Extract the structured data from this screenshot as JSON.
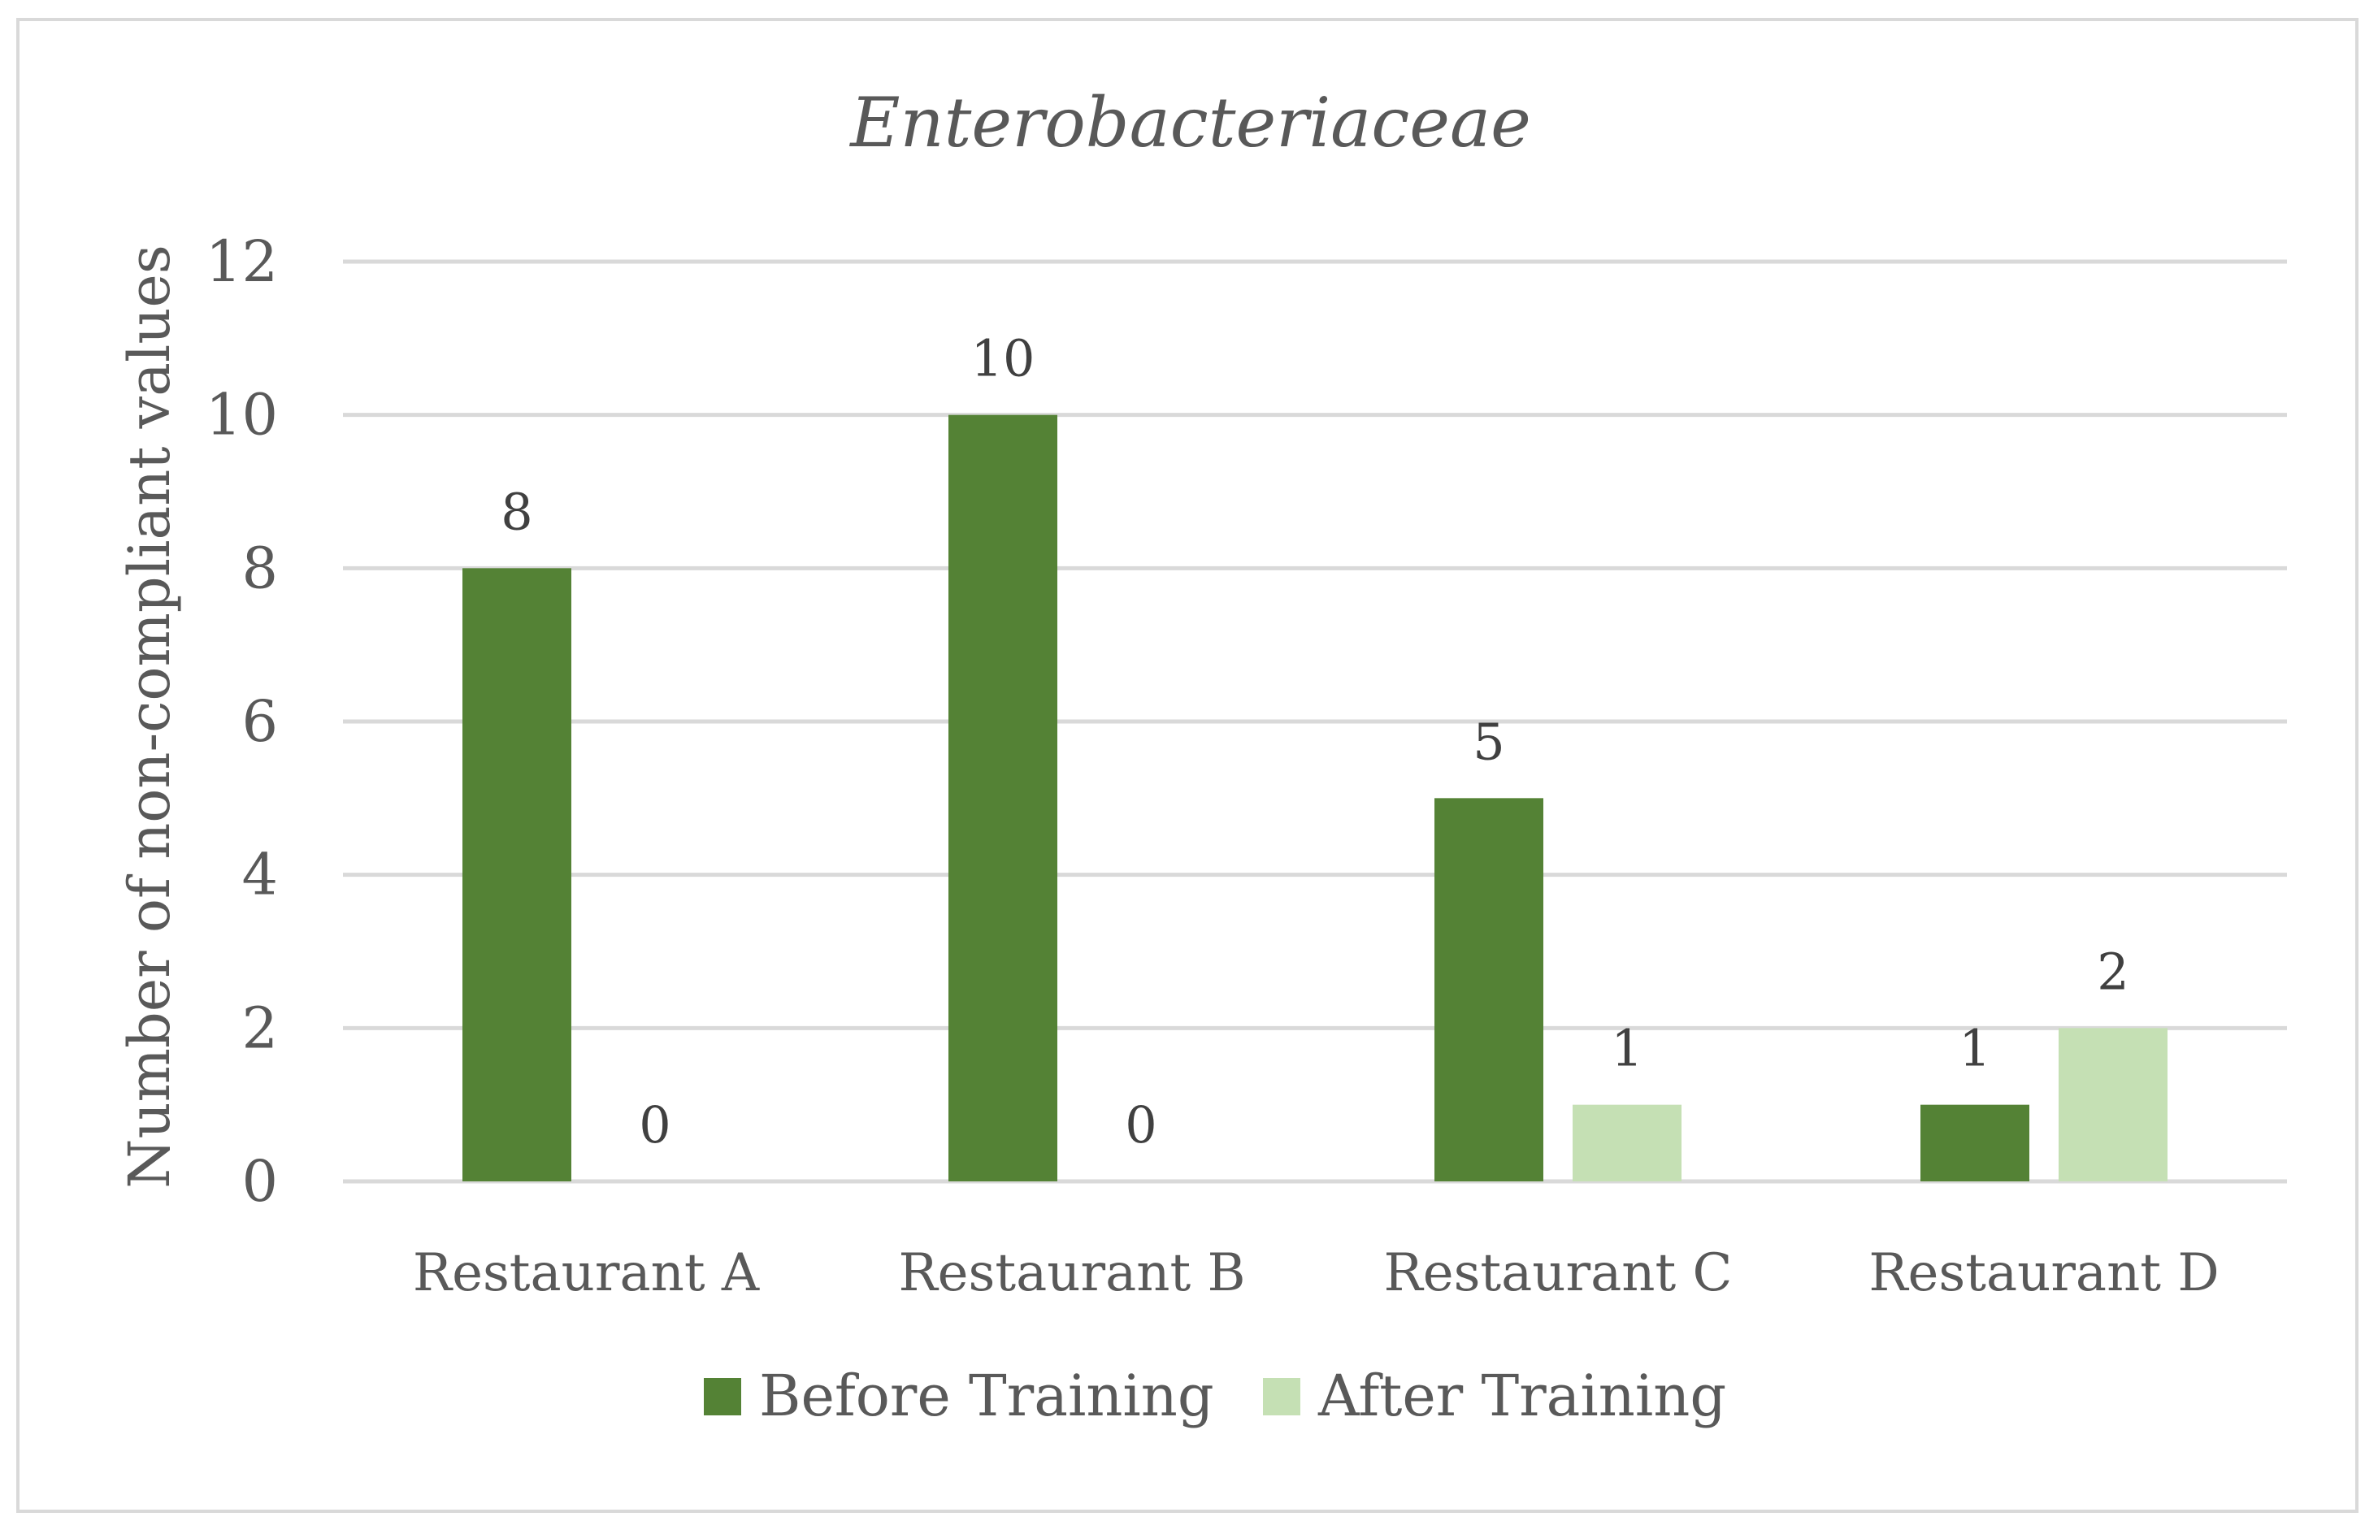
{
  "chart_data": {
    "type": "bar",
    "title": "Enterobacteriaceae",
    "xlabel": "",
    "ylabel": "Number of non-compliant values",
    "categories": [
      "Restaurant A",
      "Restaurant B",
      "Restaurant C",
      "Restaurant D"
    ],
    "series": [
      {
        "name": "Before Training",
        "values": [
          8,
          10,
          5,
          1
        ],
        "color": "#548235"
      },
      {
        "name": "After Training",
        "values": [
          0,
          0,
          1,
          2
        ],
        "color": "#c5e0b4"
      }
    ],
    "ylim": [
      0,
      12
    ],
    "yticks": [
      0,
      2,
      4,
      6,
      8,
      10,
      12
    ],
    "grid": true,
    "gridline_color": "#d9d9d9",
    "data_labels": true,
    "legend_position": "bottom"
  }
}
